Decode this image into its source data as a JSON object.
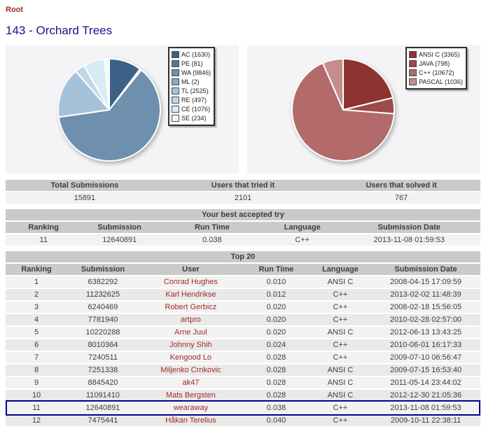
{
  "page": {
    "breadcrumb": "Root",
    "title": "143 - Orchard Trees"
  },
  "colors": {
    "title_navy": "#13138f",
    "link_maroon": "#9e2b25",
    "header_bg": "#cacaca",
    "row_light": "#f2f2f2",
    "row_dark": "#e9e9e9",
    "highlight_border": "#00008b",
    "panel_bg": "#f4f4f6"
  },
  "chart_data": [
    {
      "type": "pie",
      "id": "verdict",
      "labels": [
        "AC",
        "PE",
        "WA",
        "ML",
        "TL",
        "RE",
        "CE",
        "SE"
      ],
      "values": [
        1630,
        81,
        9846,
        2,
        2525,
        497,
        1076,
        234
      ],
      "legend_labels": [
        "AC (1630)",
        "PE (81)",
        "WA (9846)",
        "ML (2)",
        "TL (2525)",
        "RE (497)",
        "CE (1076)",
        "SE (234)"
      ],
      "colors": [
        "#3b6186",
        "#54789d",
        "#6e8fae",
        "#8aa9c6",
        "#a6c2d8",
        "#bfd7e9",
        "#d9ebf5",
        "#edfafc"
      ],
      "legend_position": "top-right",
      "start_angle_deg": -90,
      "direction": "clockwise"
    },
    {
      "type": "pie",
      "id": "language",
      "labels": [
        "ANSI C",
        "JAVA",
        "C++",
        "PASCAL"
      ],
      "values": [
        3365,
        798,
        10672,
        1036
      ],
      "legend_labels": [
        "ANSI C (3365)",
        "JAVA (798)",
        "C++ (10672)",
        "PASCAL (1036)"
      ],
      "colors": [
        "#8d3430",
        "#9e4a48",
        "#b26a6a",
        "#c68d8f"
      ],
      "legend_position": "top-right",
      "start_angle_deg": -90,
      "direction": "clockwise"
    }
  ],
  "stats_table": {
    "headers": [
      "Total Submissions",
      "Users that tried it",
      "Users that solved it"
    ],
    "values": [
      "15891",
      "2101",
      "767"
    ]
  },
  "best_try_table": {
    "title": "Your best accepted try",
    "headers": [
      "Ranking",
      "Submission",
      "Run Time",
      "Language",
      "Submission Date"
    ],
    "row": [
      "11",
      "12640891",
      "0.038",
      "C++",
      "2013-11-08 01:59:53"
    ]
  },
  "top20_table": {
    "title": "Top 20",
    "headers": [
      "Ranking",
      "Submission",
      "User",
      "Run Time",
      "Language",
      "Submission Date"
    ],
    "highlighted_ranking": "11",
    "rows": [
      [
        "1",
        "6382292",
        "Conrad Hughes",
        "0.010",
        "ANSI C",
        "2008-04-15 17:09:59"
      ],
      [
        "2",
        "11232625",
        "Karl Hendrikse",
        "0.012",
        "C++",
        "2013-02-02 11:48:39"
      ],
      [
        "3",
        "6240469",
        "Robert Gerbicz",
        "0.020",
        "C++",
        "2008-02-18 15:56:05"
      ],
      [
        "4",
        "7781940",
        "artpro",
        "0.020",
        "C++",
        "2010-02-28 02:57:00"
      ],
      [
        "5",
        "10220288",
        "Arne Juul",
        "0.020",
        "ANSI C",
        "2012-06-13 13:43:25"
      ],
      [
        "6",
        "8010364",
        "Johnny Shih",
        "0.024",
        "C++",
        "2010-06-01 16:17:33"
      ],
      [
        "7",
        "7240511",
        "Kengood Lo",
        "0.028",
        "C++",
        "2009-07-10 06:56:47"
      ],
      [
        "8",
        "7251338",
        "Miljenko Crnkovic",
        "0.028",
        "ANSI C",
        "2009-07-15 16:53:40"
      ],
      [
        "9",
        "8845420",
        "ak47",
        "0.028",
        "ANSI C",
        "2011-05-14 23:44:02"
      ],
      [
        "10",
        "11091410",
        "Mats Bergsten",
        "0.028",
        "ANSI C",
        "2012-12-30 21:05:36"
      ],
      [
        "11",
        "12640891",
        "wearaway",
        "0.038",
        "C++",
        "2013-11-08 01:59:53"
      ],
      [
        "12",
        "7475441",
        "Håkan Terelius",
        "0.040",
        "C++",
        "2009-10-11 22:38:11"
      ]
    ]
  }
}
